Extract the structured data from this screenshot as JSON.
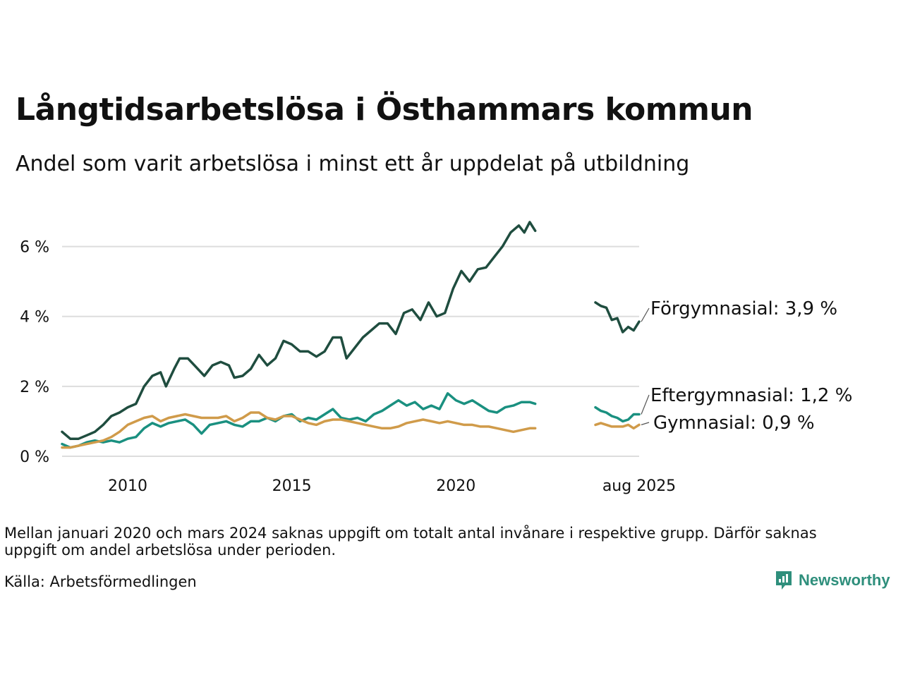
{
  "title": "Långtidsarbetslösa i Östhammars kommun",
  "subtitle": "Andel som varit arbetslösa i minst ett år uppdelat på utbildning",
  "note": "Mellan januari 2020 och mars 2024 saknas uppgift om totalt antal invånare i respektive grupp. Därför saknas uppgift om andel arbetslösa under perioden.",
  "source": "Källa: Arbetsförmedlingen",
  "brand": {
    "name": "Newsworthy",
    "icon": "newsworthy-logo-icon"
  },
  "colors": {
    "forgymnasial": "#1f4d3f",
    "eftergymnasial": "#1a9080",
    "gymnasial": "#d09b4a",
    "grid": "#dddddd"
  },
  "chart_data": {
    "type": "line",
    "x_unit": "date",
    "xlim": [
      "2008-01",
      "2025-08"
    ],
    "ylim": [
      0,
      7
    ],
    "yticks": [
      0,
      2,
      4,
      6
    ],
    "ytick_labels": [
      "0 %",
      "2 %",
      "4 %",
      "6 %"
    ],
    "xticks": [
      "2010-01",
      "2015-01",
      "2020-01",
      "2025-08"
    ],
    "xtick_labels": [
      "2010",
      "2015",
      "2020",
      "aug 2025"
    ],
    "grid": true,
    "series": [
      {
        "key": "forgymnasial",
        "end_label": "Förgymnasial: 3,9 %",
        "segments": [
          {
            "points": [
              [
                "2008-01",
                0.7
              ],
              [
                "2008-04",
                0.5
              ],
              [
                "2008-07",
                0.5
              ],
              [
                "2008-10",
                0.6
              ],
              [
                "2009-01",
                0.7
              ],
              [
                "2009-04",
                0.9
              ],
              [
                "2009-07",
                1.15
              ],
              [
                "2009-10",
                1.25
              ],
              [
                "2010-01",
                1.4
              ],
              [
                "2010-04",
                1.5
              ],
              [
                "2010-07",
                2.0
              ],
              [
                "2010-10",
                2.3
              ],
              [
                "2011-01",
                2.4
              ],
              [
                "2011-03",
                2.0
              ],
              [
                "2011-06",
                2.5
              ],
              [
                "2011-08",
                2.8
              ],
              [
                "2011-11",
                2.8
              ],
              [
                "2012-02",
                2.55
              ],
              [
                "2012-05",
                2.3
              ],
              [
                "2012-08",
                2.6
              ],
              [
                "2012-11",
                2.7
              ],
              [
                "2013-02",
                2.6
              ],
              [
                "2013-04",
                2.25
              ],
              [
                "2013-07",
                2.3
              ],
              [
                "2013-10",
                2.5
              ],
              [
                "2014-01",
                2.9
              ],
              [
                "2014-04",
                2.6
              ],
              [
                "2014-07",
                2.8
              ],
              [
                "2014-10",
                3.3
              ],
              [
                "2015-01",
                3.2
              ],
              [
                "2015-04",
                3.0
              ],
              [
                "2015-07",
                3.0
              ],
              [
                "2015-10",
                2.85
              ],
              [
                "2016-01",
                3.0
              ],
              [
                "2016-04",
                3.4
              ],
              [
                "2016-07",
                3.4
              ],
              [
                "2016-09",
                2.8
              ],
              [
                "2016-12",
                3.1
              ],
              [
                "2017-03",
                3.4
              ],
              [
                "2017-06",
                3.6
              ],
              [
                "2017-09",
                3.8
              ],
              [
                "2017-12",
                3.8
              ],
              [
                "2018-03",
                3.5
              ],
              [
                "2018-06",
                4.1
              ],
              [
                "2018-09",
                4.2
              ],
              [
                "2018-12",
                3.9
              ],
              [
                "2019-03",
                4.4
              ],
              [
                "2019-06",
                4.0
              ],
              [
                "2019-09",
                4.1
              ],
              [
                "2019-12",
                4.8
              ],
              [
                "2020-03",
                5.3
              ],
              [
                "2020-06",
                5.0
              ],
              [
                "2020-09",
                5.35
              ],
              [
                "2020-12",
                5.4
              ],
              [
                "2021-03",
                5.7
              ],
              [
                "2021-06",
                6.0
              ],
              [
                "2021-09",
                6.4
              ],
              [
                "2021-12",
                6.6
              ],
              [
                "2022-02",
                6.4
              ],
              [
                "2022-04",
                6.7
              ],
              [
                "2022-06",
                6.45
              ]
            ]
          },
          {
            "points": [
              [
                "2024-04",
                4.4
              ],
              [
                "2024-06",
                4.3
              ],
              [
                "2024-08",
                4.25
              ],
              [
                "2024-10",
                3.9
              ],
              [
                "2024-12",
                3.95
              ],
              [
                "2025-02",
                3.55
              ],
              [
                "2025-04",
                3.7
              ],
              [
                "2025-06",
                3.6
              ],
              [
                "2025-08",
                3.85
              ]
            ]
          }
        ]
      },
      {
        "key": "eftergymnasial",
        "end_label": "Eftergymnasial: 1,2 %",
        "segments": [
          {
            "points": [
              [
                "2008-01",
                0.35
              ],
              [
                "2008-04",
                0.25
              ],
              [
                "2008-07",
                0.3
              ],
              [
                "2008-10",
                0.4
              ],
              [
                "2009-01",
                0.45
              ],
              [
                "2009-04",
                0.4
              ],
              [
                "2009-07",
                0.45
              ],
              [
                "2009-10",
                0.4
              ],
              [
                "2010-01",
                0.5
              ],
              [
                "2010-04",
                0.55
              ],
              [
                "2010-07",
                0.8
              ],
              [
                "2010-10",
                0.95
              ],
              [
                "2011-01",
                0.85
              ],
              [
                "2011-04",
                0.95
              ],
              [
                "2011-07",
                1.0
              ],
              [
                "2011-10",
                1.05
              ],
              [
                "2012-01",
                0.9
              ],
              [
                "2012-04",
                0.65
              ],
              [
                "2012-07",
                0.9
              ],
              [
                "2012-10",
                0.95
              ],
              [
                "2013-01",
                1.0
              ],
              [
                "2013-04",
                0.9
              ],
              [
                "2013-07",
                0.85
              ],
              [
                "2013-10",
                1.0
              ],
              [
                "2014-01",
                1.0
              ],
              [
                "2014-04",
                1.1
              ],
              [
                "2014-07",
                1.0
              ],
              [
                "2014-10",
                1.15
              ],
              [
                "2015-01",
                1.2
              ],
              [
                "2015-04",
                1.0
              ],
              [
                "2015-07",
                1.1
              ],
              [
                "2015-10",
                1.05
              ],
              [
                "2016-01",
                1.2
              ],
              [
                "2016-04",
                1.35
              ],
              [
                "2016-07",
                1.1
              ],
              [
                "2016-10",
                1.05
              ],
              [
                "2017-01",
                1.1
              ],
              [
                "2017-04",
                1.0
              ],
              [
                "2017-07",
                1.2
              ],
              [
                "2017-10",
                1.3
              ],
              [
                "2018-01",
                1.45
              ],
              [
                "2018-04",
                1.6
              ],
              [
                "2018-07",
                1.45
              ],
              [
                "2018-10",
                1.55
              ],
              [
                "2019-01",
                1.35
              ],
              [
                "2019-04",
                1.45
              ],
              [
                "2019-07",
                1.35
              ],
              [
                "2019-10",
                1.8
              ],
              [
                "2020-01",
                1.6
              ],
              [
                "2020-04",
                1.5
              ],
              [
                "2020-07",
                1.6
              ],
              [
                "2020-10",
                1.45
              ],
              [
                "2021-01",
                1.3
              ],
              [
                "2021-04",
                1.25
              ],
              [
                "2021-07",
                1.4
              ],
              [
                "2021-10",
                1.45
              ],
              [
                "2022-01",
                1.55
              ],
              [
                "2022-04",
                1.55
              ],
              [
                "2022-06",
                1.5
              ]
            ]
          },
          {
            "points": [
              [
                "2024-04",
                1.4
              ],
              [
                "2024-06",
                1.3
              ],
              [
                "2024-08",
                1.25
              ],
              [
                "2024-10",
                1.15
              ],
              [
                "2024-12",
                1.1
              ],
              [
                "2025-02",
                1.0
              ],
              [
                "2025-04",
                1.05
              ],
              [
                "2025-06",
                1.2
              ],
              [
                "2025-08",
                1.2
              ]
            ]
          }
        ]
      },
      {
        "key": "gymnasial",
        "end_label": "Gymnasial: 0,9 %",
        "segments": [
          {
            "points": [
              [
                "2008-01",
                0.25
              ],
              [
                "2008-04",
                0.25
              ],
              [
                "2008-07",
                0.3
              ],
              [
                "2008-10",
                0.35
              ],
              [
                "2009-01",
                0.4
              ],
              [
                "2009-04",
                0.45
              ],
              [
                "2009-07",
                0.55
              ],
              [
                "2009-10",
                0.7
              ],
              [
                "2010-01",
                0.9
              ],
              [
                "2010-04",
                1.0
              ],
              [
                "2010-07",
                1.1
              ],
              [
                "2010-10",
                1.15
              ],
              [
                "2011-01",
                1.0
              ],
              [
                "2011-04",
                1.1
              ],
              [
                "2011-07",
                1.15
              ],
              [
                "2011-10",
                1.2
              ],
              [
                "2012-01",
                1.15
              ],
              [
                "2012-04",
                1.1
              ],
              [
                "2012-07",
                1.1
              ],
              [
                "2012-10",
                1.1
              ],
              [
                "2013-01",
                1.15
              ],
              [
                "2013-04",
                1.0
              ],
              [
                "2013-07",
                1.1
              ],
              [
                "2013-10",
                1.25
              ],
              [
                "2014-01",
                1.25
              ],
              [
                "2014-04",
                1.1
              ],
              [
                "2014-07",
                1.05
              ],
              [
                "2014-10",
                1.15
              ],
              [
                "2015-01",
                1.15
              ],
              [
                "2015-04",
                1.05
              ],
              [
                "2015-07",
                0.95
              ],
              [
                "2015-10",
                0.9
              ],
              [
                "2016-01",
                1.0
              ],
              [
                "2016-04",
                1.05
              ],
              [
                "2016-07",
                1.05
              ],
              [
                "2016-10",
                1.0
              ],
              [
                "2017-01",
                0.95
              ],
              [
                "2017-04",
                0.9
              ],
              [
                "2017-07",
                0.85
              ],
              [
                "2017-10",
                0.8
              ],
              [
                "2018-01",
                0.8
              ],
              [
                "2018-04",
                0.85
              ],
              [
                "2018-07",
                0.95
              ],
              [
                "2018-10",
                1.0
              ],
              [
                "2019-01",
                1.05
              ],
              [
                "2019-04",
                1.0
              ],
              [
                "2019-07",
                0.95
              ],
              [
                "2019-10",
                1.0
              ],
              [
                "2020-01",
                0.95
              ],
              [
                "2020-04",
                0.9
              ],
              [
                "2020-07",
                0.9
              ],
              [
                "2020-10",
                0.85
              ],
              [
                "2021-01",
                0.85
              ],
              [
                "2021-04",
                0.8
              ],
              [
                "2021-07",
                0.75
              ],
              [
                "2021-10",
                0.7
              ],
              [
                "2022-01",
                0.75
              ],
              [
                "2022-04",
                0.8
              ],
              [
                "2022-06",
                0.8
              ]
            ]
          },
          {
            "points": [
              [
                "2024-04",
                0.9
              ],
              [
                "2024-06",
                0.95
              ],
              [
                "2024-08",
                0.9
              ],
              [
                "2024-10",
                0.85
              ],
              [
                "2024-12",
                0.85
              ],
              [
                "2025-02",
                0.85
              ],
              [
                "2025-04",
                0.9
              ],
              [
                "2025-06",
                0.8
              ],
              [
                "2025-08",
                0.9
              ]
            ]
          }
        ]
      }
    ]
  }
}
